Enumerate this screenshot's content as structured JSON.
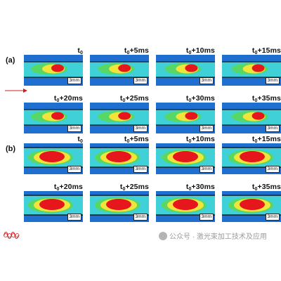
{
  "figure": {
    "sections": [
      {
        "label": "(a)",
        "scale_bar": "3mm",
        "rows": [
          [
            "t0",
            "t0+5ms",
            "t0+10ms",
            "t0+15ms"
          ],
          [
            "t0+20ms",
            "t0+25ms",
            "t0+30ms",
            "t0+35ms"
          ]
        ]
      },
      {
        "label": "(b)",
        "scale_bar": "3mm",
        "rows": [
          [
            "t0",
            "t0+5ms",
            "t0+10ms",
            "t0+15ms"
          ],
          [
            "t0+20ms",
            "t0+25ms",
            "t0+30ms",
            "t0+35ms"
          ]
        ]
      }
    ],
    "colors": {
      "background_blue": "#1f6fd0",
      "field_cyan": "#3fd0d8",
      "field_green": "#58d860",
      "field_yellow": "#f2e43a",
      "hot_red": "#e5161c",
      "arrow_red": "#cc2020"
    },
    "watermark": "公众号 · 激光束加工技术及应用"
  }
}
